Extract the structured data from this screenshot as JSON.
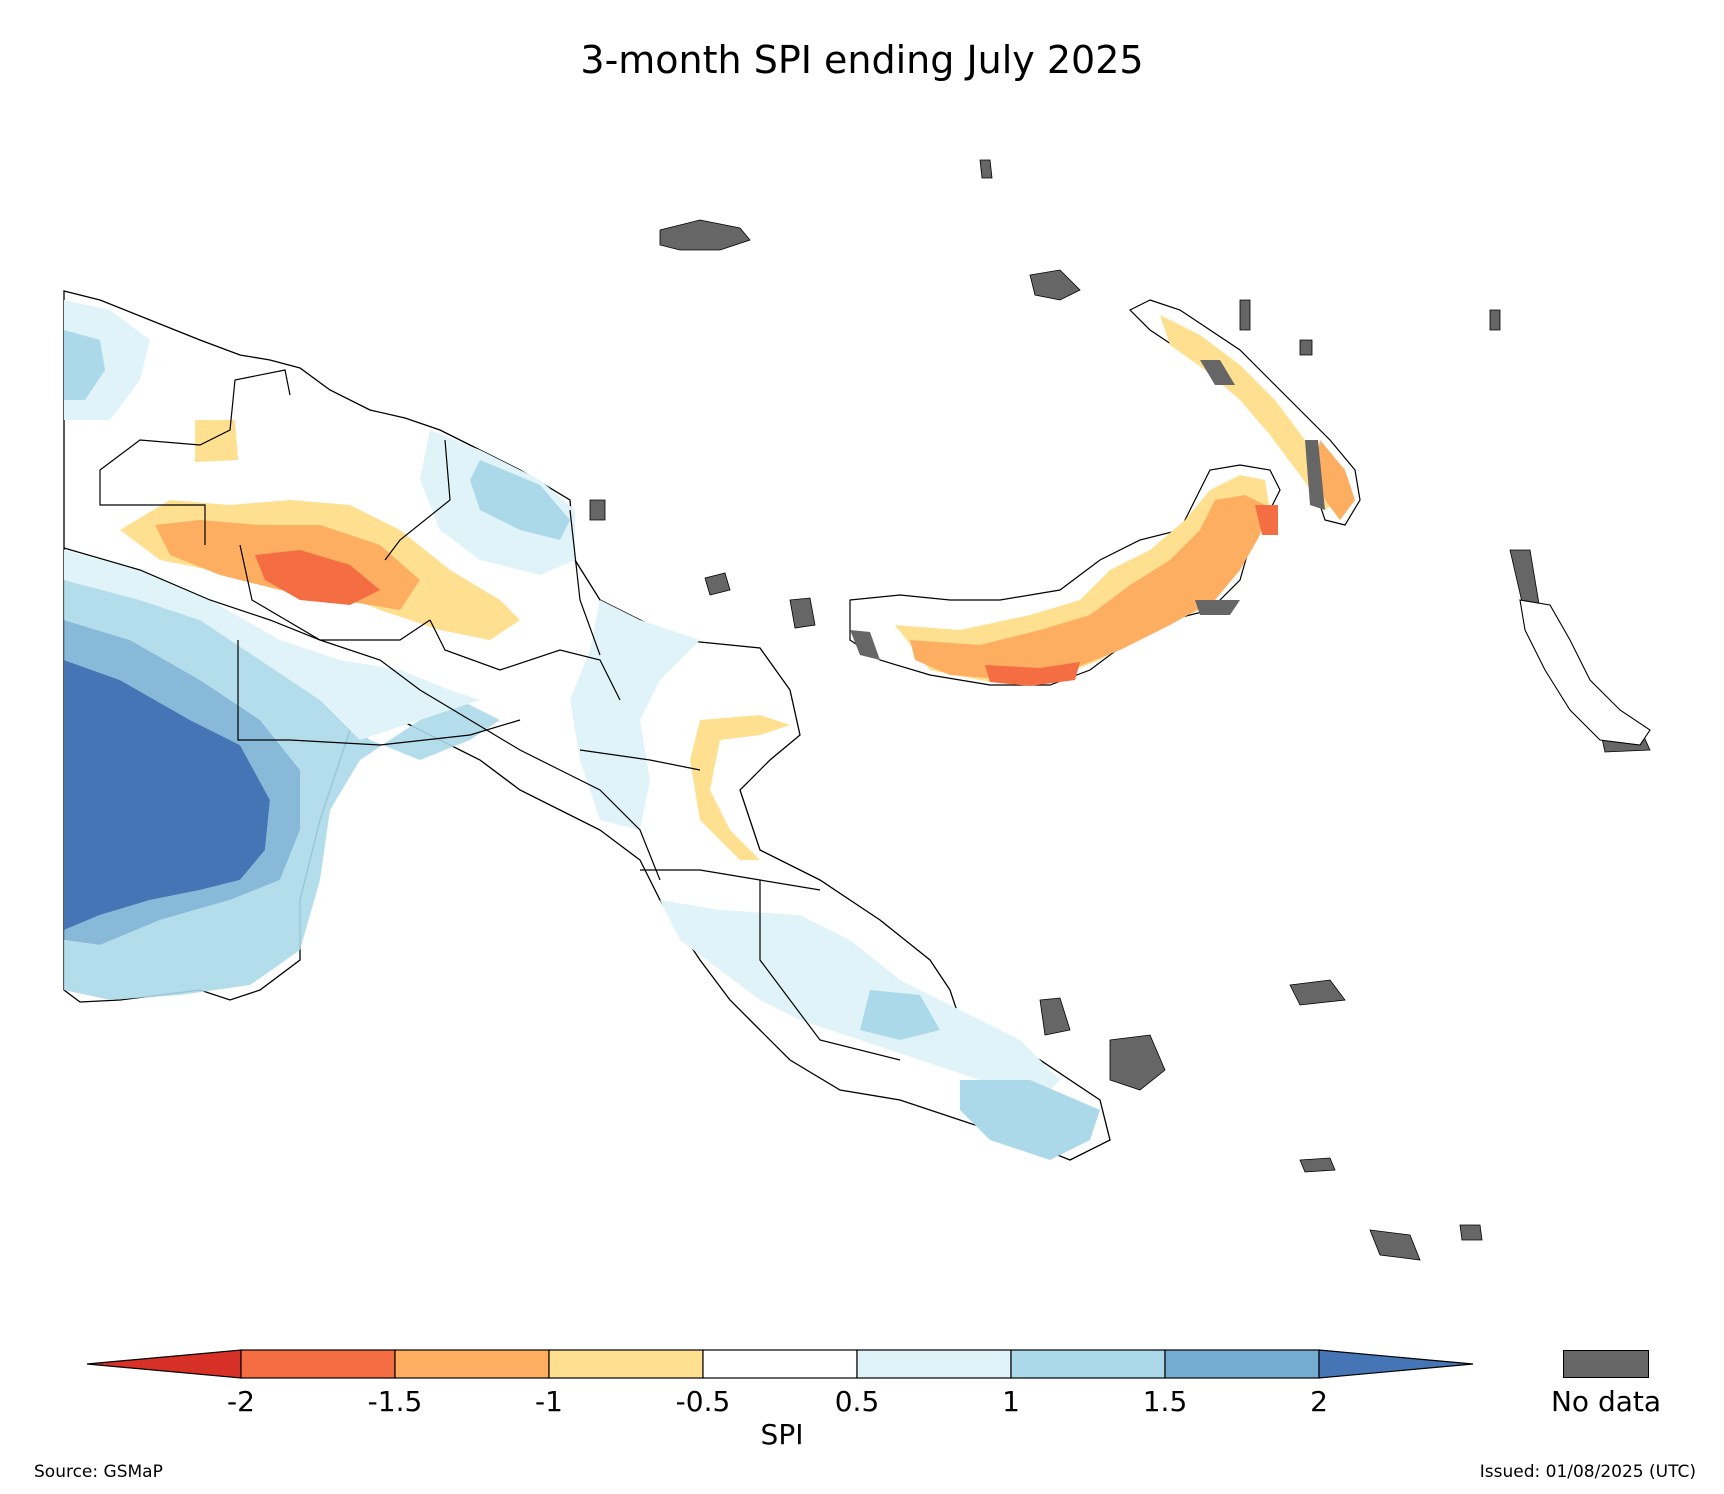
{
  "title": "3-month SPI ending July 2025",
  "legend": {
    "label": "SPI",
    "ticks": [
      "-2",
      "-1.5",
      "-1",
      "-0.5",
      "0.5",
      "1",
      "1.5",
      "2"
    ],
    "bins": [
      {
        "color": "#d73027"
      },
      {
        "color": "#f46d43"
      },
      {
        "color": "#fdae61"
      },
      {
        "color": "#fee090"
      },
      {
        "color": "#ffffff"
      },
      {
        "color": "#e0f3f8"
      },
      {
        "color": "#abd9e9"
      },
      {
        "color": "#74add1"
      },
      {
        "color": "#4575b4"
      }
    ],
    "nodata_label": "No data",
    "nodata_color": "#666666"
  },
  "footer": {
    "source": "Source: GSMaP",
    "issued": "Issued: 01/08/2025 (UTC)"
  }
}
